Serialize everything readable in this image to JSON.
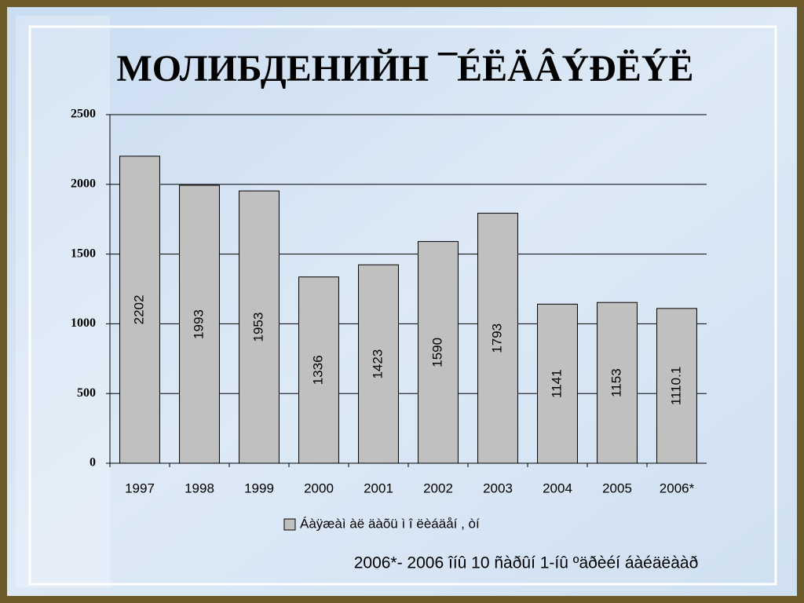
{
  "chart_data": {
    "type": "bar",
    "title": "МОЛИБДЕНИЙН ¯ÉËÄÂÝÐËÝË",
    "categories": [
      "1997",
      "1998",
      "1999",
      "2000",
      "2001",
      "2002",
      "2003",
      "2004",
      "2005",
      "2006*"
    ],
    "series": [
      {
        "name": "Áàÿæàì àë äàõü ì î ëèáäåí , òí",
        "color": "#c0c0c0",
        "values": [
          2202,
          1993,
          1953,
          1336,
          1423,
          1590,
          1793,
          1141,
          1153,
          1110.1
        ]
      }
    ],
    "ylim": [
      0,
      2500
    ],
    "yticks": [
      0,
      500,
      1000,
      1500,
      2000,
      2500
    ],
    "grid": true,
    "legend": "bottom",
    "footnote": "2006*- 2006 îíû 10 ñàðûí 1-íû ºäðèéí áàéäëààð"
  }
}
